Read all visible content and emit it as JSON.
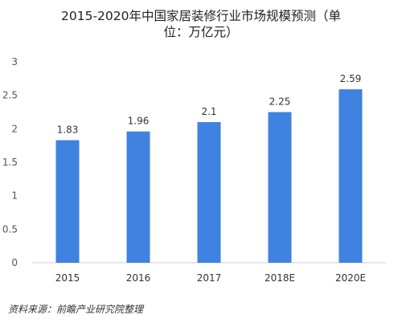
{
  "chart_data": {
    "type": "bar",
    "title_line1": "2015-2020年中国家居装修行业市场规模预测（单",
    "title_line2": "位：万亿元）",
    "categories": [
      "2015",
      "2016",
      "2017",
      "2018E",
      "2020E"
    ],
    "values": [
      1.83,
      1.96,
      2.1,
      2.25,
      2.59
    ],
    "data_labels": [
      "1.83",
      "1.96",
      "2.1",
      "2.25",
      "2.59"
    ],
    "y_ticks": [
      "0",
      "0.5",
      "1",
      "1.5",
      "2",
      "2.5",
      "3"
    ],
    "ylim": [
      0,
      3
    ],
    "grid": false,
    "bar_color": "#3f82e0"
  },
  "source_text": "资料来源：前瞻产业研究院整理"
}
